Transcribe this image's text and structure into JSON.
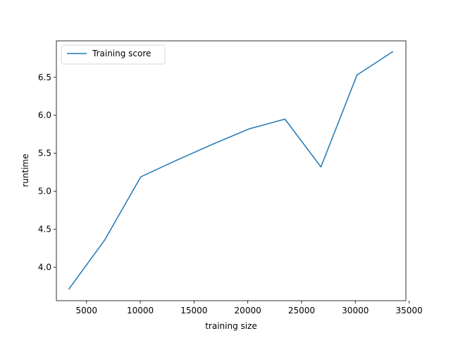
{
  "chart_data": {
    "type": "line",
    "title": "",
    "xlabel": "training size",
    "ylabel": "runtime",
    "xlim": [
      2200,
      34700
    ],
    "ylim": [
      3.56,
      6.98
    ],
    "xticks": [
      5000,
      10000,
      15000,
      20000,
      25000,
      30000,
      35000
    ],
    "yticks": [
      4.0,
      4.5,
      5.0,
      5.5,
      6.0,
      6.5
    ],
    "grid": false,
    "legend": {
      "position": "top-left",
      "entries": [
        "Training score"
      ]
    },
    "series": [
      {
        "name": "Training score",
        "color": "#1f77b4",
        "x": [
          3350,
          6700,
          10050,
          13400,
          16750,
          20100,
          23450,
          26800,
          30150,
          33500
        ],
        "y": [
          3.71,
          4.36,
          5.19,
          5.41,
          5.62,
          5.82,
          5.95,
          5.32,
          6.53,
          6.84
        ]
      }
    ]
  }
}
